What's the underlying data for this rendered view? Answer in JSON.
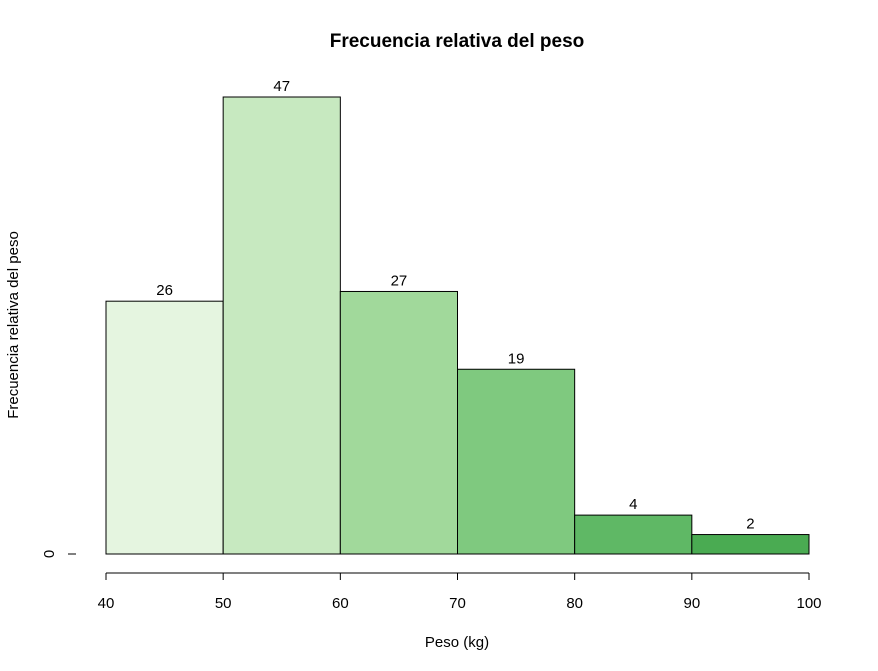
{
  "chart_data": {
    "type": "bar",
    "title": "Frecuencia relativa del peso",
    "xlabel": "Peso (kg)",
    "ylabel": "Frecuencia relativa del peso",
    "bins": [
      {
        "from": 40,
        "to": 50,
        "value": 26,
        "label": "26",
        "color": "#e5f5e0"
      },
      {
        "from": 50,
        "to": 60,
        "value": 47,
        "label": "47",
        "color": "#c7e9c0"
      },
      {
        "from": 60,
        "to": 70,
        "value": 27,
        "label": "27",
        "color": "#a1d99b"
      },
      {
        "from": 70,
        "to": 80,
        "value": 19,
        "label": "19",
        "color": "#7fc97f"
      },
      {
        "from": 80,
        "to": 90,
        "value": 4,
        "label": "4",
        "color": "#5fb865"
      },
      {
        "from": 90,
        "to": 100,
        "value": 2,
        "label": "2",
        "color": "#4aab52"
      }
    ],
    "x_ticks": [
      "40",
      "50",
      "60",
      "70",
      "80",
      "90",
      "100"
    ],
    "y_ticks": [
      "0"
    ],
    "xlim": [
      40,
      100
    ],
    "ylim": [
      0,
      47
    ],
    "grid": false,
    "legend": "none"
  }
}
